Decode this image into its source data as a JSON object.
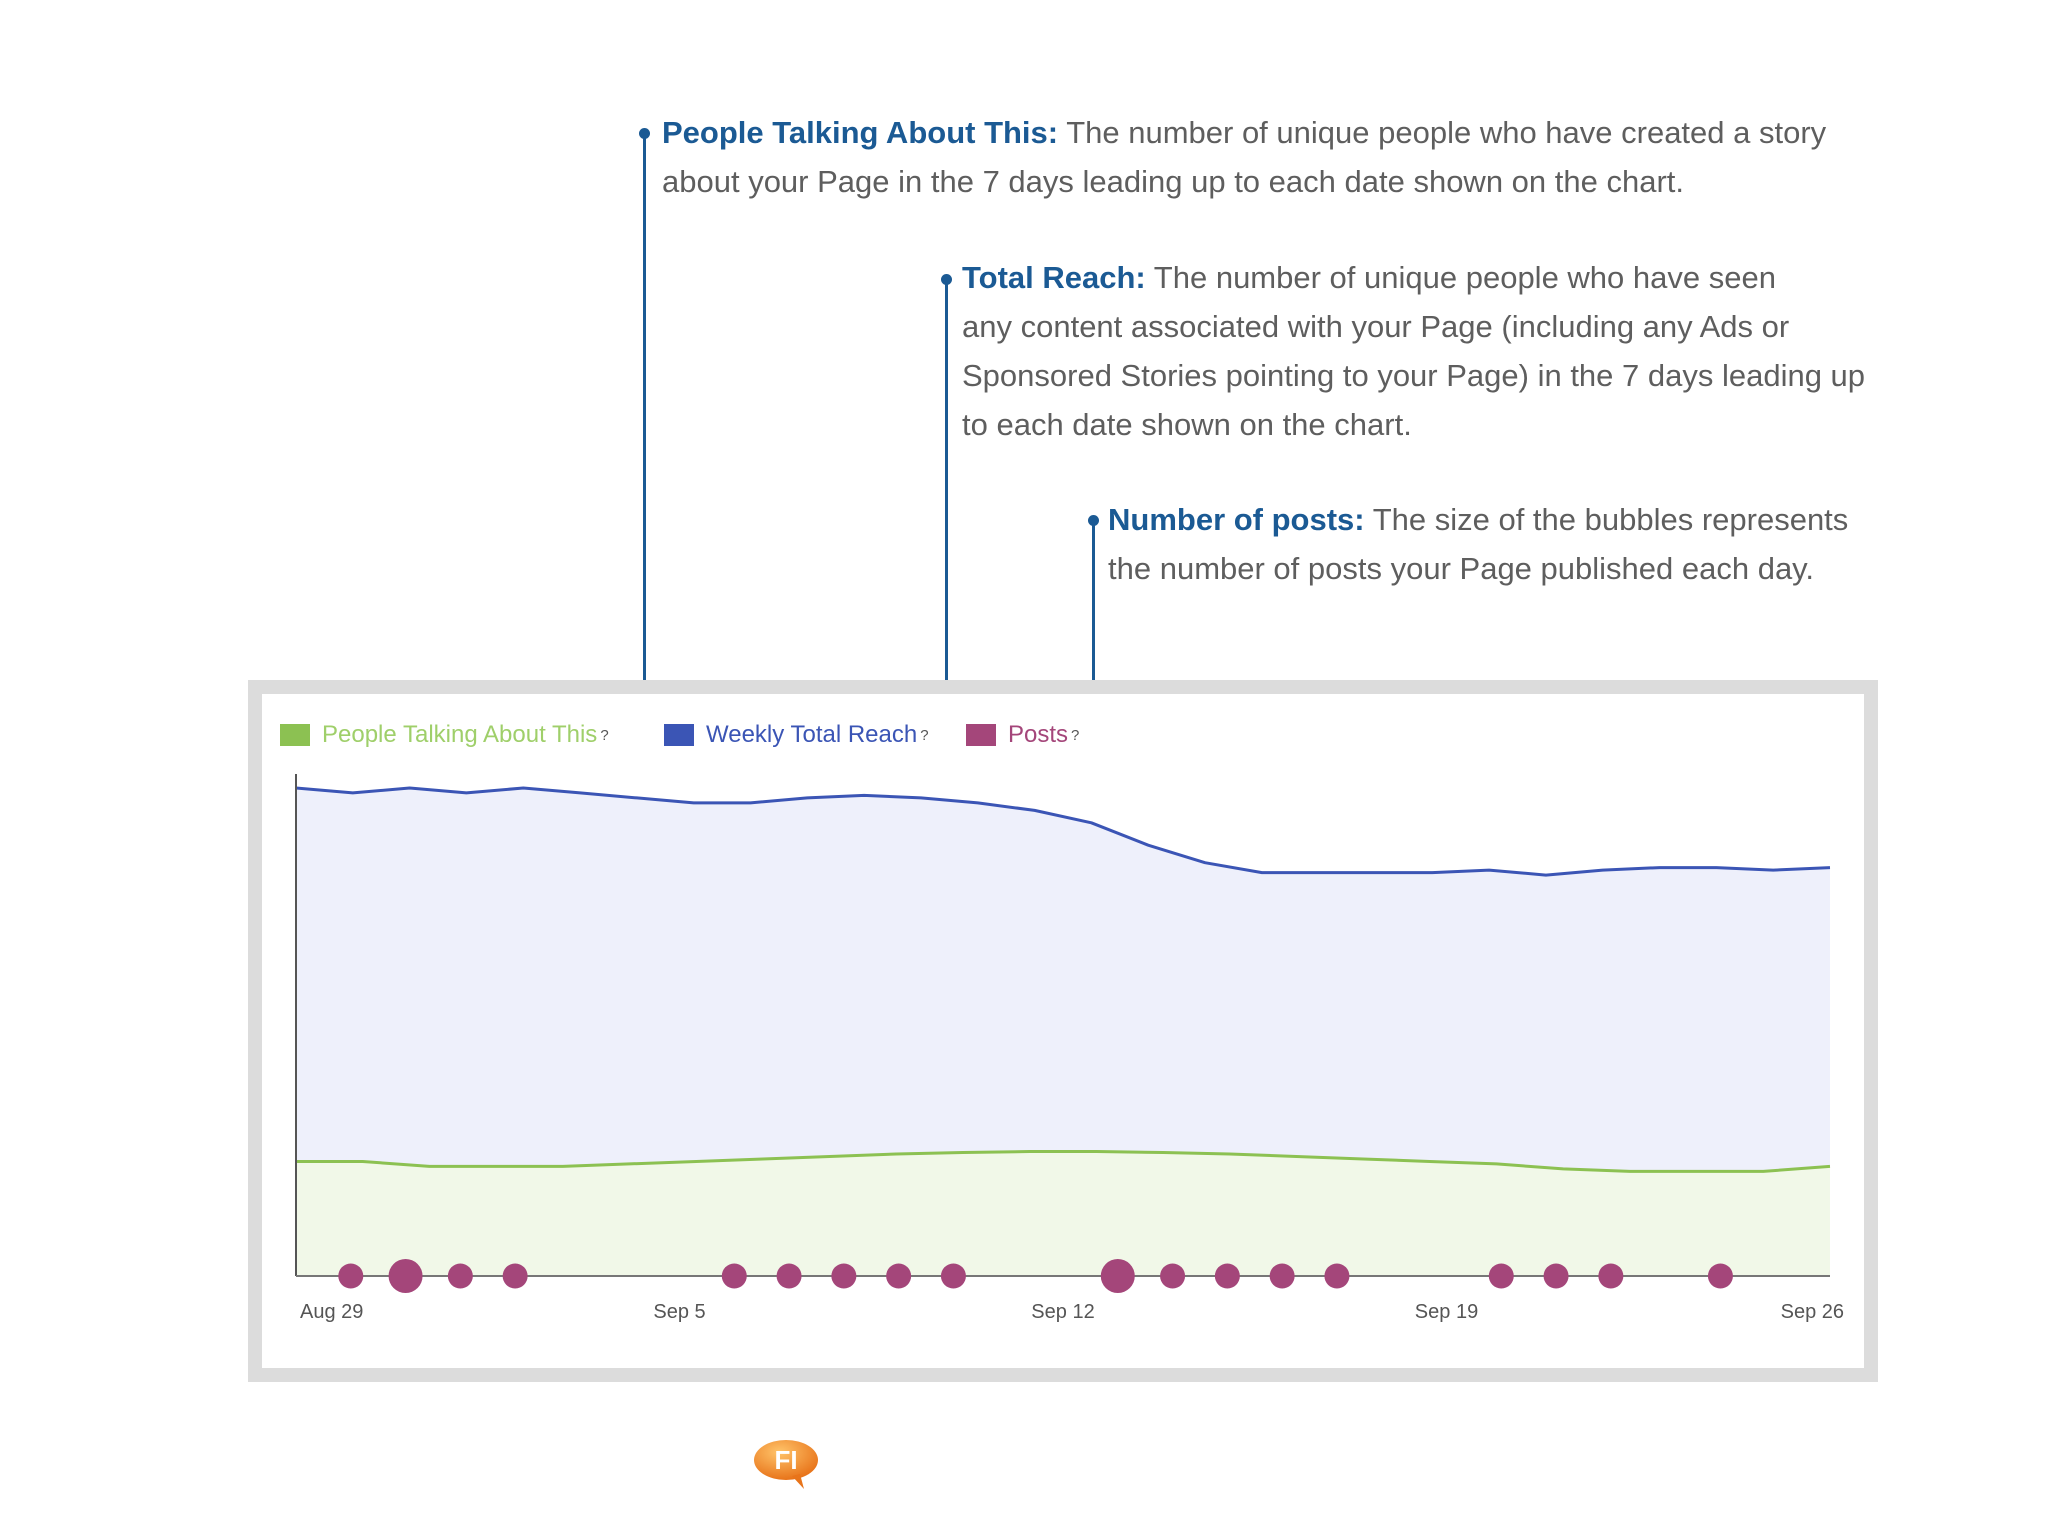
{
  "callouts": [
    {
      "term": "People Talking About This:",
      "lines": [
        "The number of unique people who have created a story",
        "about your Page in the 7 days leading up to each date shown on the chart."
      ]
    },
    {
      "term": "Total Reach:",
      "lines": [
        "The number of unique people who have seen",
        "any content associated with your Page (including any Ads or",
        "Sponsored Stories pointing to your Page) in the 7 days leading up",
        "to each date shown on the chart."
      ]
    },
    {
      "term": "Number of posts:",
      "lines": [
        "The size of the bubbles represents",
        "the number of posts your Page published each day."
      ]
    }
  ],
  "legend": [
    {
      "label": "People Talking About This",
      "mark": "?"
    },
    {
      "label": "Weekly Total Reach",
      "mark": "?"
    },
    {
      "label": "Posts",
      "mark": "?"
    }
  ],
  "logo_text": "FI",
  "colors": {
    "accent": "#1b5a94",
    "ptat": "#8cc152",
    "ptat_fill": "#f1f8e8",
    "reach": "#3b55b5",
    "reach_fill": "#eef0fb",
    "posts": "#a4467a",
    "frame": "#dcdcdc"
  },
  "chart_data": {
    "type": "area",
    "x_tick_labels": [
      "Aug 29",
      "Sep 5",
      "Sep 12",
      "Sep 19",
      "Sep 26"
    ],
    "x_start": "Aug 29",
    "x_end": "Sep 26",
    "ylim": [
      0,
      100
    ],
    "grid": false,
    "legend_position": "top-left",
    "series": [
      {
        "name": "Weekly Total Reach",
        "type": "area",
        "values": [
          98,
          97,
          98,
          97,
          98,
          97,
          96,
          95,
          95,
          96,
          96.5,
          96,
          95,
          93.5,
          91,
          86.5,
          83,
          81,
          81,
          81,
          81,
          81.5,
          80.5,
          81.5,
          82,
          82,
          81.5,
          82
        ]
      },
      {
        "name": "People Talking About This",
        "type": "area",
        "values": [
          23,
          23,
          22,
          22,
          22,
          22.5,
          23,
          23.5,
          24,
          24.5,
          24.8,
          25,
          25,
          24.8,
          24.5,
          24,
          23.5,
          23,
          22.5,
          21.5,
          21,
          21,
          21,
          22
        ]
      },
      {
        "name": "Posts",
        "type": "bubble",
        "points": [
          {
            "day": 1,
            "posts": 1
          },
          {
            "day": 2,
            "posts": 2
          },
          {
            "day": 3,
            "posts": 1
          },
          {
            "day": 4,
            "posts": 1
          },
          {
            "day": 8,
            "posts": 1
          },
          {
            "day": 9,
            "posts": 1
          },
          {
            "day": 10,
            "posts": 1
          },
          {
            "day": 11,
            "posts": 1
          },
          {
            "day": 12,
            "posts": 1
          },
          {
            "day": 15,
            "posts": 2
          },
          {
            "day": 16,
            "posts": 1
          },
          {
            "day": 17,
            "posts": 1
          },
          {
            "day": 18,
            "posts": 1
          },
          {
            "day": 19,
            "posts": 1
          },
          {
            "day": 22,
            "posts": 1
          },
          {
            "day": 23,
            "posts": 1
          },
          {
            "day": 24,
            "posts": 1
          },
          {
            "day": 26,
            "posts": 1
          }
        ]
      }
    ]
  }
}
